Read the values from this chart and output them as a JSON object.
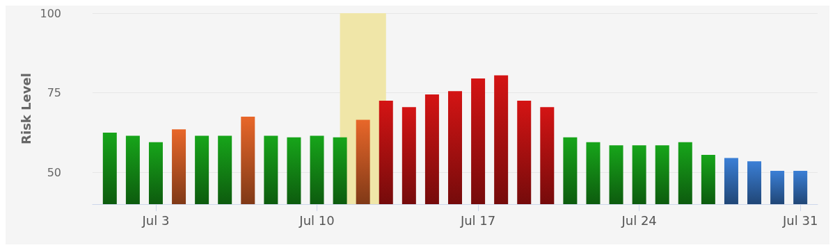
{
  "chart_data": {
    "type": "bar",
    "ylabel": "Risk Level",
    "x": [
      "--07-01",
      "--07-02",
      "--07-03",
      "--07-04",
      "--07-05",
      "--07-06",
      "--07-07",
      "--07-08",
      "--07-09",
      "--07-10",
      "--07-11",
      "--07-12",
      "--07-13",
      "--07-14",
      "--07-15",
      "--07-16",
      "--07-17",
      "--07-18",
      "--07-19",
      "--07-20",
      "--07-21",
      "--07-22",
      "--07-23",
      "--07-24",
      "--07-25",
      "--07-26",
      "--07-27",
      "--07-28",
      "--07-29",
      "--07-30",
      "--07-31"
    ],
    "values": [
      62.5,
      61.5,
      59.5,
      63.5,
      61.5,
      61.5,
      67.5,
      61.5,
      61,
      61.5,
      61,
      66.5,
      72.5,
      70.5,
      74.5,
      75.5,
      79.5,
      80.5,
      72.5,
      70.5,
      61,
      59.5,
      58.5,
      58.5,
      58.5,
      59.5,
      55.5,
      54.5,
      53.5,
      50.5,
      50.5
    ],
    "colors": [
      "#17a51a",
      "#17a51a",
      "#17a51a",
      "#e8672a",
      "#17a51a",
      "#17a51a",
      "#e8672a",
      "#17a51a",
      "#17a51a",
      "#17a51a",
      "#17a51a",
      "#e8672a",
      "#d41414",
      "#d41414",
      "#d41414",
      "#d41414",
      "#d41414",
      "#d41414",
      "#d41414",
      "#d41414",
      "#17a51a",
      "#17a51a",
      "#17a51a",
      "#17a51a",
      "#17a51a",
      "#17a51a",
      "#17a51a",
      "#3b7fd6",
      "#3b7fd6",
      "#3b7fd6",
      "#3b7fd6"
    ],
    "xlim": [
      "--06-30T06:00",
      "--07-31T18:00"
    ],
    "xticks": [
      {
        "value": "--07-03",
        "label": "Jul 3"
      },
      {
        "value": "--07-10",
        "label": "Jul 10"
      },
      {
        "value": "--07-17",
        "label": "Jul 17"
      },
      {
        "value": "--07-24",
        "label": "Jul 24"
      },
      {
        "value": "--07-31",
        "label": "Jul 31"
      }
    ],
    "ylim": [
      40,
      100
    ],
    "yticks": [
      50,
      75,
      100
    ],
    "grid": "y",
    "bands": [
      {
        "axis": "x",
        "from": "--07-11",
        "to": "--07-13",
        "color": "#f0e6a8"
      }
    ]
  }
}
